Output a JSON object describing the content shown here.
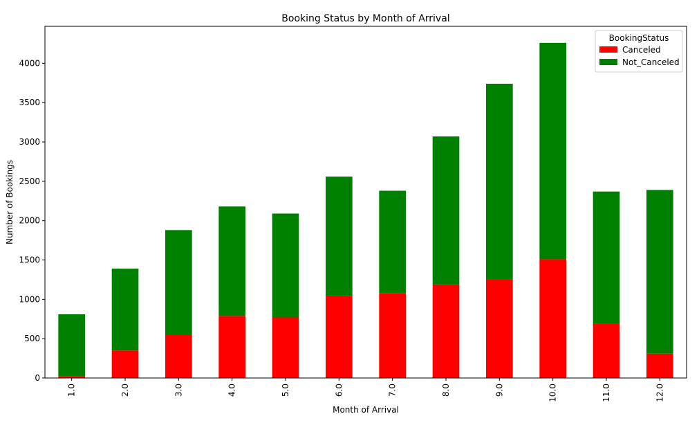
{
  "chart_data": {
    "type": "bar",
    "stacked": true,
    "title": "Booking Status by Month of Arrival",
    "xlabel": "Month of Arrival",
    "ylabel": "Number of Bookings",
    "categories": [
      "1.0",
      "2.0",
      "3.0",
      "4.0",
      "5.0",
      "6.0",
      "7.0",
      "8.0",
      "9.0",
      "10.0",
      "11.0",
      "12.0"
    ],
    "series": [
      {
        "name": "Canceled",
        "color": "#ff0000",
        "values": [
          20,
          350,
          550,
          790,
          770,
          1040,
          1080,
          1190,
          1250,
          1510,
          690,
          310
        ]
      },
      {
        "name": "Not_Canceled",
        "color": "#008000",
        "values": [
          790,
          1040,
          1330,
          1390,
          1320,
          1520,
          1300,
          1880,
          2490,
          2750,
          1680,
          2080
        ]
      }
    ],
    "yticks": [
      0,
      500,
      1000,
      1500,
      2000,
      2500,
      3000,
      3500,
      4000
    ],
    "ylim": [
      0,
      4470
    ],
    "legend_title": "BookingStatus",
    "legend_position": "top-right",
    "grid": false
  }
}
